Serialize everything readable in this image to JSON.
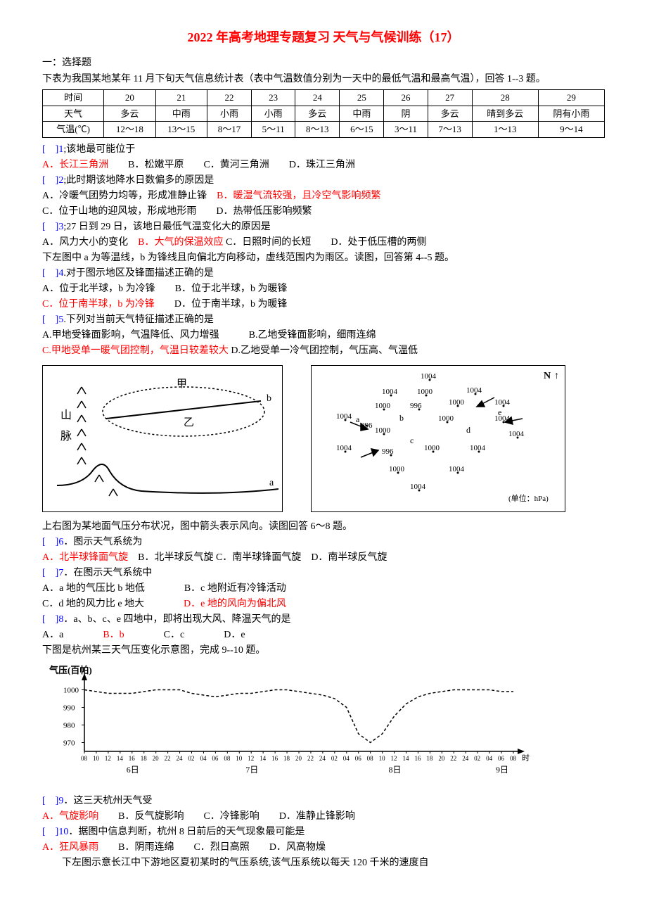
{
  "title": "2022 年高考地理专题复习 天气与气候训练（17）",
  "section1": "一：选择题",
  "intro1a": "下表为我国某地某年 11 月下旬天气信息统计表（表中气温数值分别为一天中的最低气温和最高气温），回答 1--3 题。",
  "table1": {
    "headers": [
      "时间",
      "20",
      "21",
      "22",
      "23",
      "24",
      "25",
      "26",
      "27",
      "28",
      "29"
    ],
    "row_weather_label": "天气",
    "row_weather": [
      "多云",
      "中雨",
      "小雨",
      "小雨",
      "多云",
      "中雨",
      "阴",
      "多云",
      "晴到多云",
      "阴有小雨"
    ],
    "row_temp_label": "气温(℃)",
    "row_temp": [
      "12～18",
      "13～15",
      "8～17",
      "5～11",
      "8～13",
      "6～15",
      "3～11",
      "7～13",
      "1～13",
      "9～14"
    ]
  },
  "q1": {
    "b": "[　]1",
    "t": ";该地最可能位于"
  },
  "q1o": {
    "a": "A．长江三角洲",
    "b": "B．松嫩平原",
    "c": "C．黄河三角洲",
    "d": "D．珠江三角洲"
  },
  "q2": {
    "b": "[　]2",
    "t": ";此时期该地降水日数偏多的原因是"
  },
  "q2o": {
    "a": "A．冷暖气团势力均等，形成准静止锋",
    "b": "B．暖湿气流较强，且冷空气影响频繁",
    "c": "C．位于山地的迎风坡，形成地形雨",
    "d": "D．热带低压影响频繁"
  },
  "q3": {
    "b": "[　]3",
    "t": ";27 日到 29 日，该地日最低气温变化大的原因是"
  },
  "q3o": {
    "a": "A．风力大小的变化",
    "b": "B．大气的保温效应",
    "c": "C．日照时间的长短",
    "d": "D．处于低压槽的两侧"
  },
  "intro4": "下左图中 a 为等温线，b 为锋线且向偏北方向移动，虚线范围内为雨区。读图，回答第 4--5 题。",
  "q4": {
    "b": "[　]4",
    "t": ".对于图示地区及锋面描述正确的是"
  },
  "q4o": {
    "a": "A．位于北半球，b 为冷锋",
    "b": "B．位于北半球，b 为暖锋",
    "c": " C．位于南半球，b 为冷锋",
    "d": "D．位于南半球，b 为暖锋"
  },
  "q5": {
    "b": "[　]5",
    "t": ".下列对当前天气特征描述正确的是"
  },
  "q5o": {
    "a": "A.甲地受锋面影响，气温降低、风力增强",
    "b": "B.乙地受锋面影响，细雨连绵",
    "c": "C.甲地受单一暖气团控制，气温日较差较大",
    "d": "D.乙地受单一冷气团控制，气压高、气温低"
  },
  "fig_left": {
    "mountain_label": "山脉",
    "jia": "甲",
    "yi": "乙",
    "a": "a",
    "b": "b"
  },
  "fig_right": {
    "N": "N",
    "unit": "(单位：hPa)",
    "vals": [
      "1004",
      "1004",
      "1004",
      "1000",
      "1004",
      "1000",
      "996",
      "1000",
      "1004",
      "1004",
      "996",
      "1000",
      "1004",
      "1004",
      "996",
      "1000",
      "1004",
      "1000",
      "1004",
      "1004",
      "1004"
    ],
    "labels": {
      "a": "a",
      "b": "b",
      "c": "c",
      "d": "d",
      "e": "e"
    }
  },
  "intro6": "上右图为某地面气压分布状况，图中箭头表示风向。读图回答 6～8 题。",
  "q6": {
    "b": "[　]6",
    "t": "．图示天气系统为"
  },
  "q6o": {
    "a": "A．北半球锋面气旋",
    "b": "B．北半球反气旋",
    "c": "C．南半球锋面气旋",
    "d": "D．南半球反气旋"
  },
  "q7": {
    "b": "[　]7",
    "t": "．在图示天气系统中"
  },
  "q7o": {
    "a": "A．a 地的气压比 b 地低",
    "b": "B．c 地附近有冷锋活动",
    "c": "C．d 地的风力比 e 地大",
    "d": "D．e 地的风向为偏北风"
  },
  "q8": {
    "b": "[　]8",
    "t": "．a、b、c、e 四地中，即将出现大风、降温天气的是"
  },
  "q8o": {
    "a": "A．a",
    "b": "B．b",
    "c": "C．c",
    "d": "D．e"
  },
  "intro9": "下图是杭州某三天气压变化示意图，完成 9--10 题。",
  "chart9": {
    "ylabel": "气压(百帕)",
    "yticks": [
      970,
      980,
      990,
      1000
    ],
    "xlabels_top": [
      "08",
      "10",
      "12",
      "14",
      "16",
      "18",
      "20",
      "22",
      "24",
      "02",
      "04",
      "06",
      "08",
      "10",
      "12",
      "14",
      "16",
      "18",
      "20",
      "22",
      "24",
      "02",
      "04",
      "06",
      "08",
      "10",
      "12",
      "14",
      "16",
      "18",
      "20",
      "22",
      "24",
      "02",
      "04",
      "06",
      "08"
    ],
    "xlabels_bottom": [
      "时"
    ],
    "days": [
      "6日",
      "7日",
      "8日",
      "9日"
    ],
    "values": [
      1000,
      999,
      998,
      998,
      998,
      999,
      1000,
      1000,
      1000,
      998,
      997,
      996,
      997,
      998,
      998,
      999,
      1000,
      1000,
      999,
      998,
      997,
      995,
      990,
      975,
      970,
      975,
      985,
      992,
      996,
      998,
      999,
      1000,
      1000,
      1000,
      1000,
      999,
      999
    ]
  },
  "q9": {
    "b": "[　]9",
    "t": "．这三天杭州天气受"
  },
  "q9o": {
    "a": "A．气旋影响",
    "b": "B．反气旋影响",
    "c": "C．冷锋影响",
    "d": "D．准静止锋影响"
  },
  "q10": {
    "b": "[　]10",
    "t": "．据图中信息判断，杭州 8 日前后的天气现象最可能是"
  },
  "q10o": {
    "a": "A．狂风暴雨",
    "b": "B．阴雨连绵",
    "c": "C．烈日高照",
    "d": "D．风高物燥"
  },
  "intro11": "　　下左图示意长江中下游地区夏初某时的气压系统,该气压系统以每天 120 千米的速度自"
}
